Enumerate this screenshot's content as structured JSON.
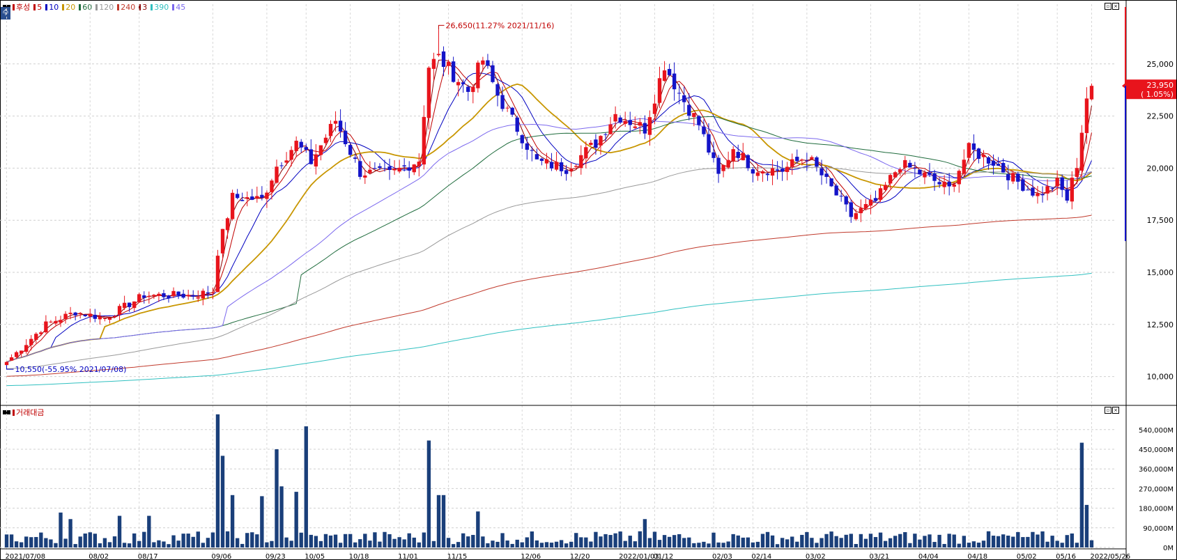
{
  "legend": {
    "stock_name": "후성",
    "ma_items": [
      {
        "label": "5",
        "color": "#c00000"
      },
      {
        "label": "10",
        "color": "#0000c0"
      },
      {
        "label": "20",
        "color": "#c89600"
      },
      {
        "label": "60",
        "color": "#1e6b3c"
      },
      {
        "label": "120",
        "color": "#999999"
      },
      {
        "label": "240",
        "color": "#c0392b"
      },
      {
        "label": "3",
        "color": "#8b0000"
      },
      {
        "label": "390",
        "color": "#30c0c0"
      },
      {
        "label": "45",
        "color": "#7b68ee"
      }
    ]
  },
  "corner_label": "수",
  "volume_legend": "거래대금",
  "colors": {
    "up": "#e8141c",
    "down": "#1414c8",
    "volume": "#1a3f7a"
  },
  "chart_data": [
    {
      "type": "candlestick",
      "title": "",
      "y_ticks": [
        "10,000",
        "12,500",
        "15,000",
        "17,500",
        "20,000",
        "22,500",
        "25,000"
      ],
      "y_values": [
        10000,
        12500,
        15000,
        17500,
        20000,
        22500,
        25000
      ],
      "ylim": [
        8750,
        27600
      ],
      "x_tick_labels": [
        "2021/07/08",
        "08/02",
        "08/17",
        "09/06",
        "09/23",
        "10/05",
        "10/18",
        "11/01",
        "11/15",
        "12/06",
        "12/20",
        "2022/01/03",
        "01/12",
        "02/03",
        "02/14",
        "03/02",
        "03/21",
        "04/04",
        "04/18",
        "05/02",
        "05/16",
        "2022/05/26"
      ],
      "annotations": {
        "high": "26,650(11.27% 2021/11/16)",
        "low": "10,550(-55.95% 2021/07/08)"
      },
      "current_price": "23,950",
      "current_change": "( 1.05%)",
      "anchors": [
        [
          0,
          10700
        ],
        [
          8,
          12500
        ],
        [
          14,
          13100
        ],
        [
          20,
          12800
        ],
        [
          28,
          13900
        ],
        [
          38,
          13900
        ],
        [
          42,
          14100
        ],
        [
          43,
          16000
        ],
        [
          46,
          18600
        ],
        [
          52,
          18500
        ],
        [
          55,
          20100
        ],
        [
          59,
          21200
        ],
        [
          62,
          20300
        ],
        [
          67,
          22300
        ],
        [
          72,
          19800
        ],
        [
          78,
          19700
        ],
        [
          84,
          20400
        ],
        [
          86,
          24900
        ],
        [
          88,
          25300
        ],
        [
          94,
          23700
        ],
        [
          97,
          25200
        ],
        [
          100,
          23500
        ],
        [
          108,
          20300
        ],
        [
          114,
          20000
        ],
        [
          120,
          21200
        ],
        [
          124,
          22600
        ],
        [
          130,
          21900
        ],
        [
          134,
          25000
        ],
        [
          137,
          23600
        ],
        [
          141,
          22100
        ],
        [
          145,
          19600
        ],
        [
          148,
          21000
        ],
        [
          152,
          20000
        ],
        [
          158,
          19900
        ],
        [
          163,
          20600
        ],
        [
          170,
          18400
        ],
        [
          172,
          17700
        ],
        [
          177,
          18400
        ],
        [
          182,
          20200
        ],
        [
          185,
          19900
        ],
        [
          192,
          19000
        ],
        [
          196,
          20900
        ],
        [
          201,
          20300
        ],
        [
          205,
          19500
        ],
        [
          210,
          18700
        ],
        [
          214,
          19300
        ],
        [
          216,
          18500
        ],
        [
          218,
          20200
        ],
        [
          220,
          23400
        ],
        [
          221,
          23950
        ]
      ],
      "ma_series": [
        {
          "name": "5",
          "period": 5,
          "color": "#c00000"
        },
        {
          "name": "10",
          "period": 10,
          "color": "#0000c0"
        },
        {
          "name": "20",
          "period": 20,
          "color": "#c89600"
        },
        {
          "name": "60",
          "period": 60,
          "color": "#1e6b3c"
        },
        {
          "name": "120",
          "period": 120,
          "color": "#999999"
        },
        {
          "name": "240",
          "period": 240,
          "color": "#c0392b"
        },
        {
          "name": "3",
          "period": 3,
          "color": "#8b0000"
        },
        {
          "name": "390",
          "period": 390,
          "color": "#30c0c0"
        },
        {
          "name": "45",
          "period": 45,
          "color": "#7b68ee"
        }
      ]
    },
    {
      "type": "bar",
      "title": "거래대금",
      "y_ticks": [
        "0M",
        "90,000M",
        "180,000M",
        "270,000M",
        "360,000M",
        "450,000M",
        "540,000M"
      ],
      "y_values": [
        0,
        90000,
        180000,
        270000,
        360000,
        450000,
        540000
      ],
      "ylim": [
        0,
        600000
      ],
      "unit": "M",
      "spikes": [
        [
          11,
          160000
        ],
        [
          13,
          130000
        ],
        [
          23,
          145000
        ],
        [
          29,
          145000
        ],
        [
          43,
          610000
        ],
        [
          44,
          420000
        ],
        [
          46,
          240000
        ],
        [
          52,
          235000
        ],
        [
          55,
          450000
        ],
        [
          56,
          280000
        ],
        [
          59,
          255000
        ],
        [
          61,
          555000
        ],
        [
          86,
          490000
        ],
        [
          88,
          240000
        ],
        [
          89,
          240000
        ],
        [
          96,
          165000
        ],
        [
          130,
          130000
        ],
        [
          219,
          480000
        ],
        [
          220,
          195000
        ]
      ]
    }
  ]
}
